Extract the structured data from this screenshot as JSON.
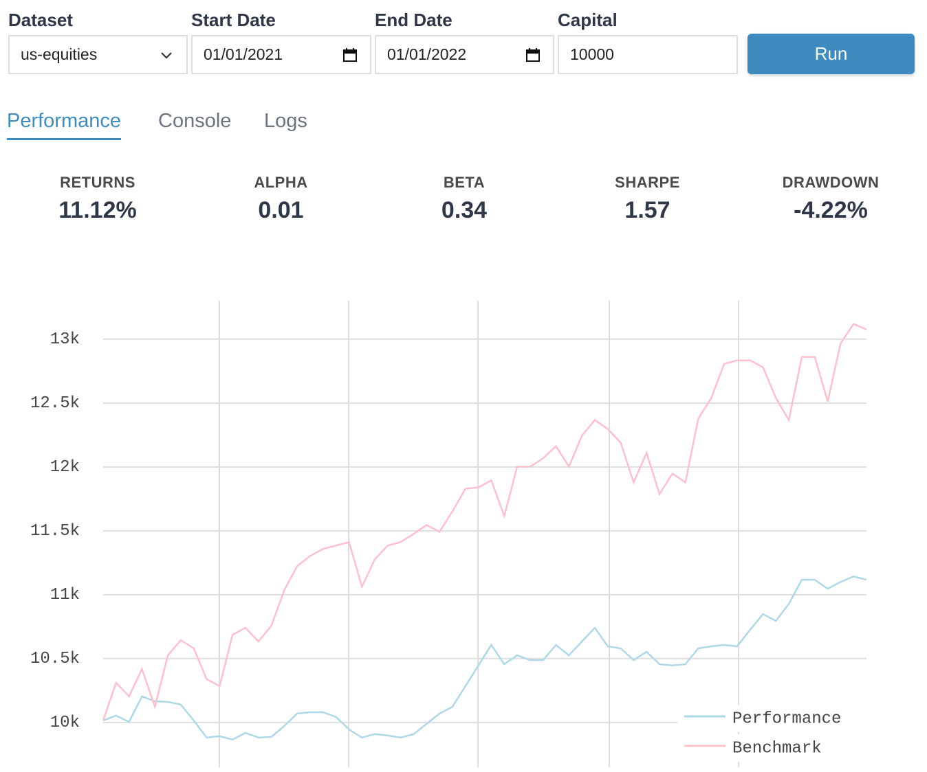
{
  "form": {
    "fields": [
      {
        "label": "Dataset",
        "value": "us-equities"
      },
      {
        "label": "Start Date",
        "value": "01/01/2021"
      },
      {
        "label": "End Date",
        "value": "01/01/2022"
      },
      {
        "label": "Capital",
        "value": "10000"
      }
    ],
    "button": "Run"
  },
  "tabs": [
    "Performance",
    "Console",
    "Logs"
  ],
  "stats": [
    {
      "label": "RETURNS",
      "value": "11.12%"
    },
    {
      "label": "ALPHA",
      "value": "0.01"
    },
    {
      "label": "BETA",
      "value": "0.34"
    },
    {
      "label": "SHARPE",
      "value": "1.57"
    },
    {
      "label": "DRAWDOWN",
      "value": "-4.22%"
    }
  ],
  "chart_data": {
    "type": "line",
    "ylim": [
      9650,
      13300
    ],
    "yticks": [
      {
        "value": 10000,
        "label": "10k"
      },
      {
        "value": 10500,
        "label": "10.5k"
      },
      {
        "value": 11000,
        "label": "11k"
      },
      {
        "value": 11500,
        "label": "11.5k"
      },
      {
        "value": 12000,
        "label": "12k"
      },
      {
        "value": 12500,
        "label": "12.5k"
      },
      {
        "value": 13000,
        "label": "13k"
      }
    ],
    "grid": true,
    "legend": "bottom-right",
    "series": [
      {
        "name": "Performance",
        "color": "#add8e6",
        "values": [
          10016,
          10054,
          10005,
          10204,
          10166,
          10161,
          10140,
          10016,
          9882,
          9893,
          9866,
          9919,
          9882,
          9887,
          9973,
          10070,
          10080,
          10080,
          10043,
          9946,
          9882,
          9909,
          9898,
          9882,
          9909,
          9989,
          10070,
          10123,
          10284,
          10446,
          10607,
          10456,
          10526,
          10488,
          10488,
          10607,
          10526,
          10633,
          10741,
          10596,
          10580,
          10488,
          10553,
          10456,
          10446,
          10456,
          10580,
          10596,
          10607,
          10596,
          10725,
          10848,
          10795,
          10929,
          11117,
          11117,
          11047,
          11100,
          11143,
          11117
        ]
      },
      {
        "name": "Benchmark",
        "color": "#ffc0cb",
        "values": [
          10016,
          10311,
          10204,
          10419,
          10123,
          10526,
          10644,
          10580,
          10338,
          10284,
          10687,
          10741,
          10634,
          10757,
          11036,
          11224,
          11304,
          11358,
          11385,
          11412,
          11063,
          11278,
          11385,
          11412,
          11476,
          11546,
          11492,
          11653,
          11830,
          11840,
          11895,
          11616,
          12002,
          12002,
          12067,
          12163,
          12002,
          12244,
          12367,
          12297,
          12190,
          11879,
          12110,
          11787,
          11948,
          11879,
          12378,
          12539,
          12807,
          12834,
          12834,
          12780,
          12539,
          12367,
          12861,
          12861,
          12512,
          12968,
          13118,
          13076
        ]
      }
    ]
  }
}
